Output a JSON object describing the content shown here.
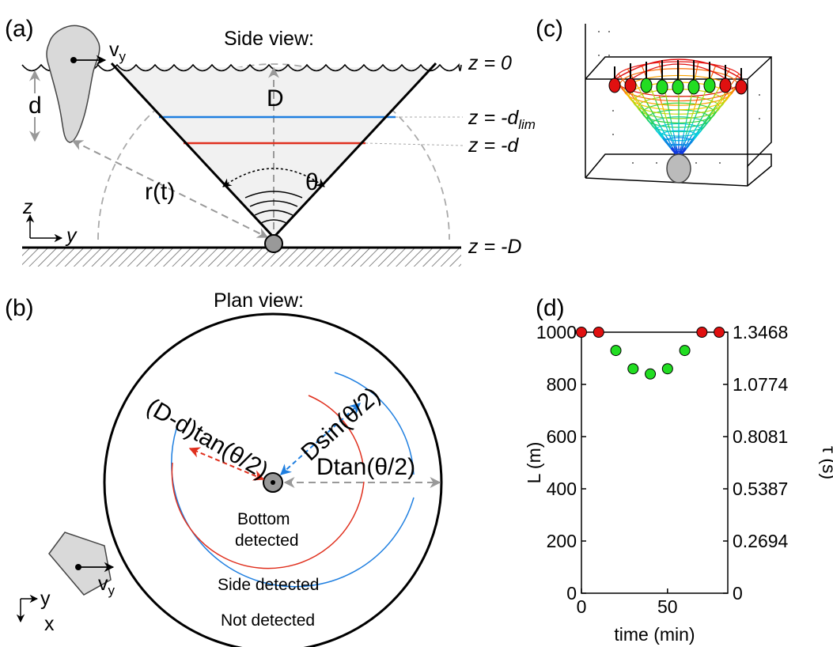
{
  "panels": {
    "a": {
      "tag": "(a)",
      "title": "Side view:",
      "velocity": {
        "main": "v",
        "sub": "y"
      },
      "depth_symbol": "d",
      "D_symbol": "D",
      "range_symbol": "r(t)",
      "angle_symbol": "θ",
      "axis_z": "z",
      "axis_y": "y",
      "levels": [
        {
          "main": "z = 0",
          "sub": ""
        },
        {
          "main": "z = -d",
          "sub": "lim"
        },
        {
          "main": "z = -d",
          "sub": ""
        },
        {
          "main": "z = -D",
          "sub": ""
        }
      ]
    },
    "b": {
      "tag": "(b)",
      "title": "Plan view:",
      "labels": {
        "red_radius": "(D-d)tan(θ/2)",
        "blue_radius": "Dsin(θ/2)",
        "outer_radius": "Dtan(θ/2)"
      },
      "zones": {
        "bottom_1": "Bottom",
        "bottom_2": "detected",
        "side": "Side detected",
        "none": "Not detected"
      },
      "velocity": {
        "main": "v",
        "sub": "y"
      },
      "axis_y": "y",
      "axis_x": "x"
    },
    "c": {
      "tag": "(c)"
    },
    "d": {
      "tag": "(d)"
    }
  },
  "colors": {
    "blue_line": "#1f7fe0",
    "red_line": "#e0301e",
    "red_dot": "#e01010",
    "green_dot": "#22dd22",
    "gray_fill": "#d9d9d9",
    "dashed_gray": "#999999"
  },
  "chart_data": {
    "type": "scatter",
    "xlabel": "time (min)",
    "ylabel": "L (m)",
    "ylabel_right": "τ (s)",
    "xlim": [
      0,
      85
    ],
    "ylim": [
      0,
      1000
    ],
    "xticks": [
      0,
      50
    ],
    "yticks": [
      0,
      200,
      400,
      600,
      800,
      1000
    ],
    "yticks_right": [
      "0",
      "0.2694",
      "0.5387",
      "0.8081",
      "1.0774",
      "1.3468"
    ],
    "series": [
      {
        "color": "#e01010",
        "x": [
          0,
          10,
          70,
          80
        ],
        "y": [
          1000,
          1000,
          1000,
          1000
        ]
      },
      {
        "color": "#22dd22",
        "x": [
          20,
          30,
          40,
          50,
          60
        ],
        "y": [
          930,
          860,
          840,
          860,
          930
        ]
      }
    ]
  }
}
